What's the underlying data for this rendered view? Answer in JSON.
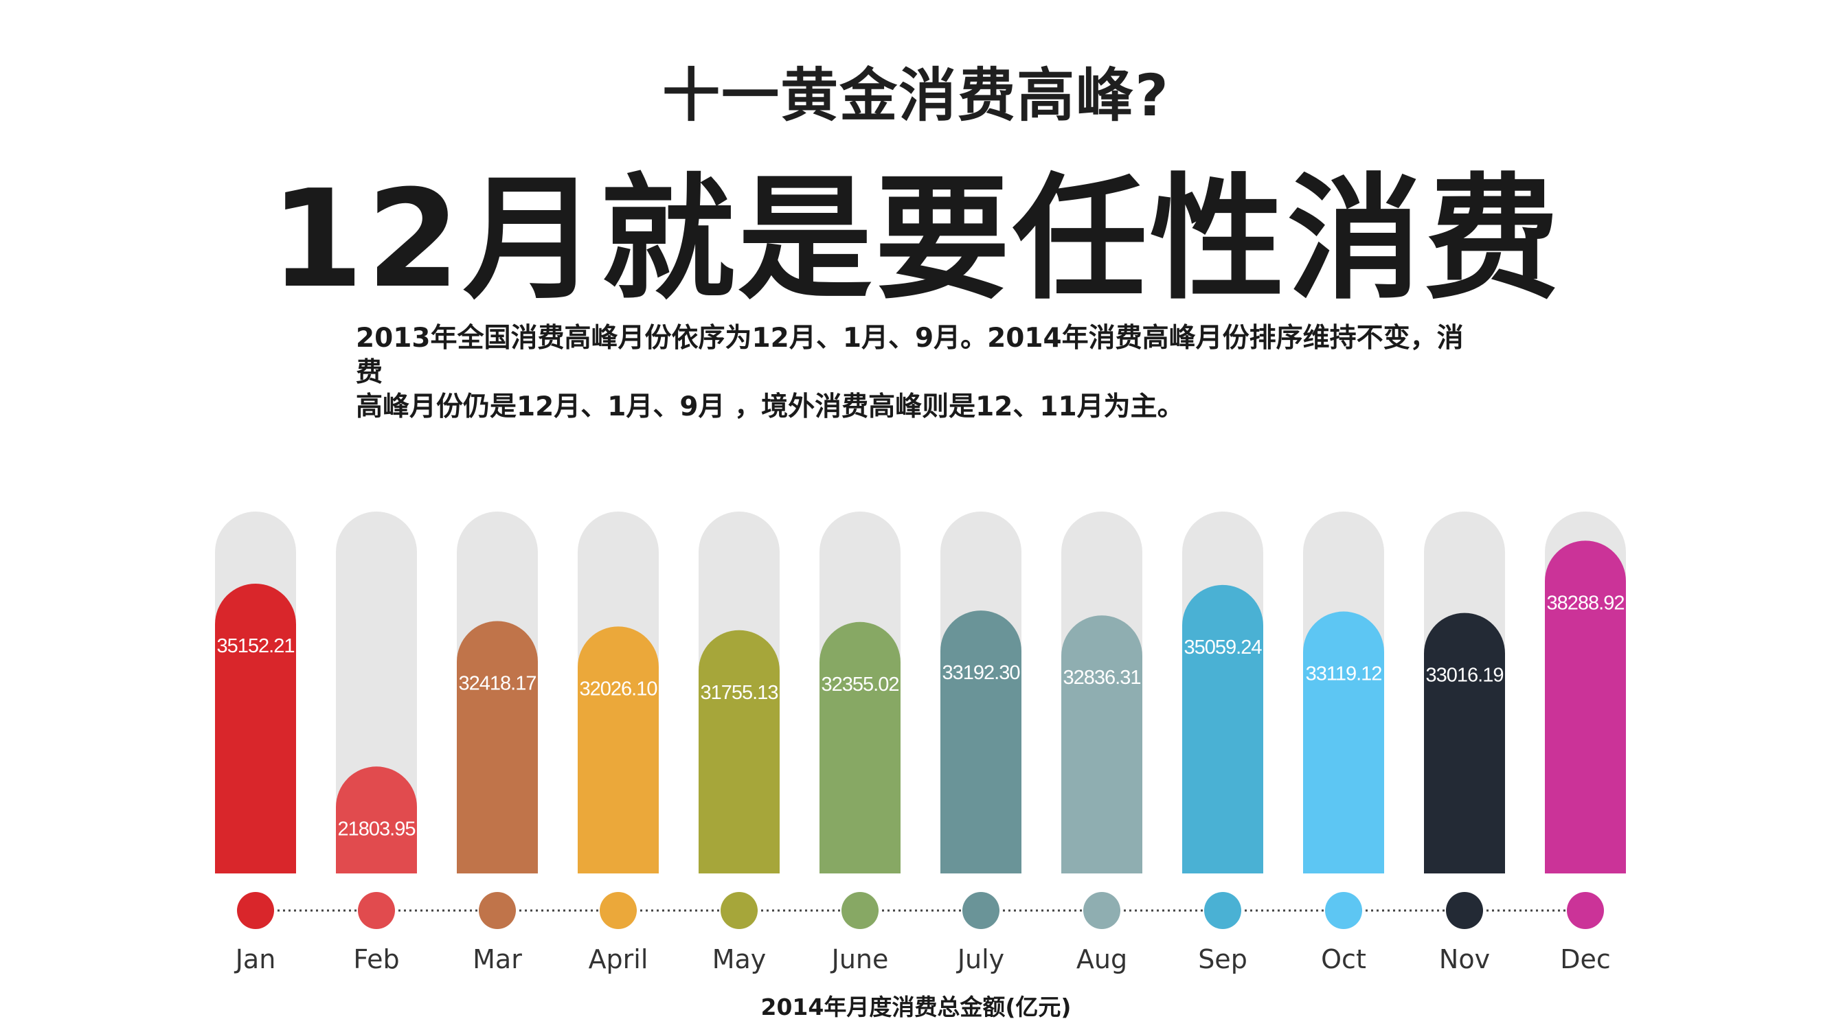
{
  "header": {
    "subtitle": "十一黄金消费高峰?",
    "title": "12月就是要任性消费"
  },
  "description": {
    "line1": "2013年全国消费高峰月份依序为12月、1月、9月。2014年消费高峰月份排序维持不变，消费",
    "line2": "高峰月份仍是12月、1月、9月 ，境外消费高峰则是12、11月为主。"
  },
  "footer": {
    "caption": "2014年月度消费总金额(亿元)"
  },
  "chart_data": {
    "type": "bar",
    "title": "2014年月度消费总金额(亿元)",
    "categories": [
      "Jan",
      "Feb",
      "Mar",
      "April",
      "May",
      "June",
      "July",
      "Aug",
      "Sep",
      "Oct",
      "Nov",
      "Dec"
    ],
    "values": [
      35152.21,
      21803.95,
      32418.17,
      32026.1,
      31755.13,
      32355.02,
      33192.3,
      32836.31,
      35059.24,
      33119.12,
      33016.19,
      38288.92
    ],
    "value_labels": [
      "35152.21",
      "21803.95",
      "32418.17",
      "32026.10",
      "31755.13",
      "32355.02",
      "33192.30",
      "32836.31",
      "35059.24",
      "33119.12",
      "33016.19",
      "38288.92"
    ],
    "colors": [
      "#d9262b",
      "#e14b4e",
      "#c0744a",
      "#eba83a",
      "#a6a63a",
      "#87a864",
      "#6a9498",
      "#8faeb1",
      "#4ab1d4",
      "#5dc6f3",
      "#232a35",
      "#cb3398"
    ],
    "track_color": "#e6e6e6",
    "connector_color": "#444444",
    "grid": false,
    "legend": "none"
  }
}
